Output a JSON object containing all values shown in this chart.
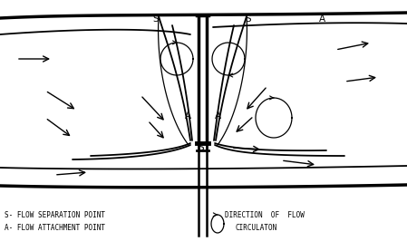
{
  "bg_color": "#ffffff",
  "line_color": "#000000",
  "fig_width": 4.49,
  "fig_height": 2.77,
  "dpi": 100,
  "legend_text_1": "S- FLOW SEPARATION POINT",
  "legend_text_2": "A- FLOW ATTACHMENT POINT",
  "legend_text_3": "DIRECTION  OF  FLOW",
  "legend_text_4": "CIRCULATON"
}
